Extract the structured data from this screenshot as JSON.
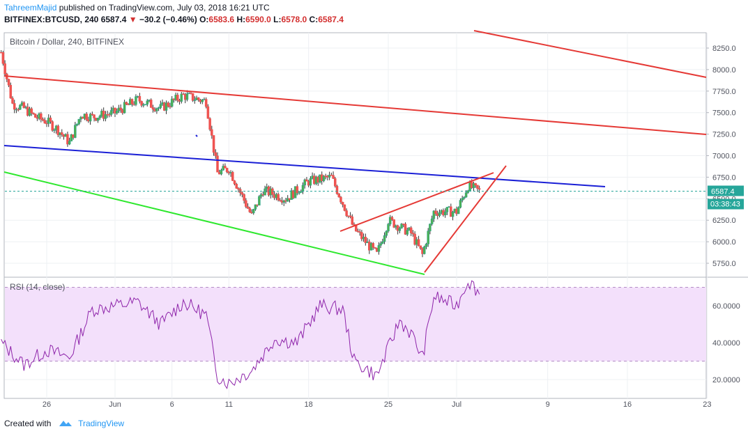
{
  "header": {
    "author": "TahreemMajid",
    "published_text": "published on TradingView.com, July 03, 2018 16:21 UTC"
  },
  "ticker": {
    "symbol": "BITFINEX:BTCUSD, 240",
    "last": "6587.4",
    "change": "−30.2 (−0.46%)",
    "o_label": "O:",
    "o": "6583.6",
    "h_label": "H:",
    "h": "6590.0",
    "l_label": "L:",
    "l": "6578.0",
    "c_label": "C:",
    "c": "6587.4"
  },
  "footer": {
    "created_with": "Created with",
    "brand": "TradingView"
  },
  "colors": {
    "up": "#26a69a",
    "up_fill": "#4caf50",
    "down": "#ef5350",
    "channel_red": "#e53935",
    "channel_blue": "#1a1fd6",
    "support_green": "#2ee82e",
    "rsi_line": "#8e24aa",
    "rsi_band": "#f3e0fb",
    "last_price": "#26a69a"
  },
  "chart_data": [
    {
      "type": "candlestick",
      "title": "Bitcoin / Dollar, 240, BITFINEX",
      "x_ticks": [
        "26",
        "Jun",
        "6",
        "11",
        "18",
        "25",
        "Jul",
        "9",
        "16",
        "23"
      ],
      "y_ticks": [
        "8250.0",
        "8000.0",
        "7750.0",
        "7500.0",
        "7250.0",
        "7000.0",
        "6750.0",
        "6500.0",
        "6250.0",
        "6000.0",
        "5750.0"
      ],
      "ylim": [
        5650,
        8400
      ],
      "last_price_label": "6587.4",
      "countdown_label": "03:38:43",
      "approx_closes": [
        {
          "date": "May 22",
          "close": 8200
        },
        {
          "date": "May 23",
          "close": 7600
        },
        {
          "date": "May 24",
          "close": 7550
        },
        {
          "date": "May 25",
          "close": 7450
        },
        {
          "date": "May 26",
          "close": 7400
        },
        {
          "date": "May 27",
          "close": 7300
        },
        {
          "date": "May 28",
          "close": 7150
        },
        {
          "date": "May 29",
          "close": 7480
        },
        {
          "date": "May 30",
          "close": 7450
        },
        {
          "date": "Jun 1",
          "close": 7500
        },
        {
          "date": "Jun 3",
          "close": 7650
        },
        {
          "date": "Jun 5",
          "close": 7550
        },
        {
          "date": "Jun 7",
          "close": 7700
        },
        {
          "date": "Jun 9",
          "close": 7630
        },
        {
          "date": "Jun 10",
          "close": 6800
        },
        {
          "date": "Jun 11",
          "close": 6850
        },
        {
          "date": "Jun 13",
          "close": 6300
        },
        {
          "date": "Jun 14",
          "close": 6600
        },
        {
          "date": "Jun 16",
          "close": 6500
        },
        {
          "date": "Jun 18",
          "close": 6700
        },
        {
          "date": "Jun 20",
          "close": 6750
        },
        {
          "date": "Jun 22",
          "close": 6150
        },
        {
          "date": "Jun 24",
          "close": 5850
        },
        {
          "date": "Jun 25",
          "close": 6250
        },
        {
          "date": "Jun 27",
          "close": 6100
        },
        {
          "date": "Jun 28",
          "close": 5850
        },
        {
          "date": "Jun 29",
          "close": 6350
        },
        {
          "date": "Jul 1",
          "close": 6350
        },
        {
          "date": "Jul 2",
          "close": 6650
        },
        {
          "date": "Jul 3",
          "close": 6587.4
        }
      ]
    },
    {
      "type": "line",
      "title": "RSI (14, close)",
      "y_ticks": [
        "60.0000",
        "40.0000",
        "20.0000"
      ],
      "ylim": [
        10,
        78
      ],
      "band": [
        30,
        70
      ],
      "approx_values": [
        {
          "date": "May 22",
          "value": 40
        },
        {
          "date": "May 24",
          "value": 28
        },
        {
          "date": "May 26",
          "value": 36
        },
        {
          "date": "May 28",
          "value": 32
        },
        {
          "date": "May 30",
          "value": 58
        },
        {
          "date": "Jun 1",
          "value": 60
        },
        {
          "date": "Jun 3",
          "value": 62
        },
        {
          "date": "Jun 5",
          "value": 50
        },
        {
          "date": "Jun 7",
          "value": 62
        },
        {
          "date": "Jun 9",
          "value": 55
        },
        {
          "date": "Jun 10",
          "value": 22
        },
        {
          "date": "Jun 11",
          "value": 18
        },
        {
          "date": "Jun 13",
          "value": 25
        },
        {
          "date": "Jun 15",
          "value": 42
        },
        {
          "date": "Jun 17",
          "value": 40
        },
        {
          "date": "Jun 19",
          "value": 60
        },
        {
          "date": "Jun 21",
          "value": 58
        },
        {
          "date": "Jun 22",
          "value": 30
        },
        {
          "date": "Jun 24",
          "value": 22
        },
        {
          "date": "Jun 26",
          "value": 52
        },
        {
          "date": "Jun 27",
          "value": 45
        },
        {
          "date": "Jun 28",
          "value": 32
        },
        {
          "date": "Jun 29",
          "value": 65
        },
        {
          "date": "Jul 1",
          "value": 60
        },
        {
          "date": "Jul 2",
          "value": 74
        },
        {
          "date": "Jul 3",
          "value": 67
        }
      ]
    }
  ]
}
